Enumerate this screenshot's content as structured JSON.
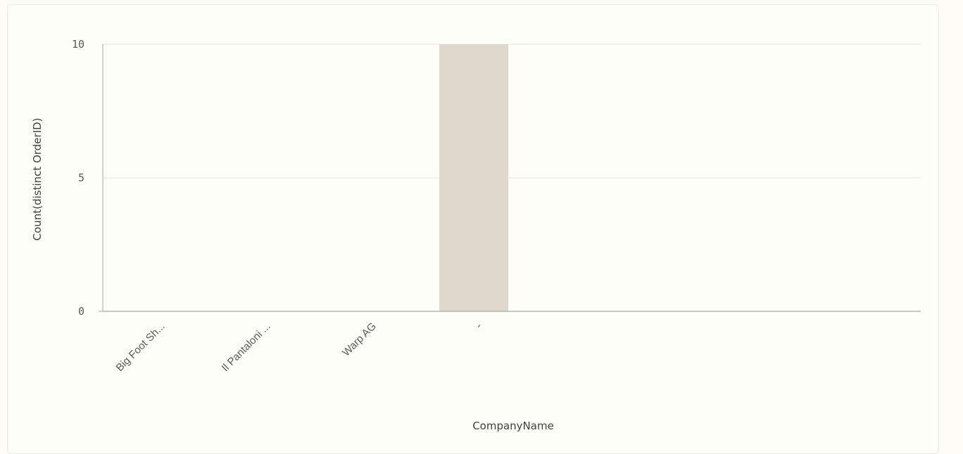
{
  "chart_data": {
    "type": "bar",
    "categories": [
      "Big Foot Sh...",
      "Il Pantaloni ...",
      "Warp AG",
      "-"
    ],
    "values": [
      0,
      0,
      0,
      10
    ],
    "xlabel": "CompanyName",
    "ylabel": "Count(distinct OrderID)",
    "ylim": [
      0,
      10
    ],
    "yticks": [
      0,
      5,
      10
    ],
    "grid": true,
    "colors": {
      "bar": "#e0d8cc",
      "gridline": "#e2e2da",
      "axis": "#a6a6a6"
    }
  }
}
